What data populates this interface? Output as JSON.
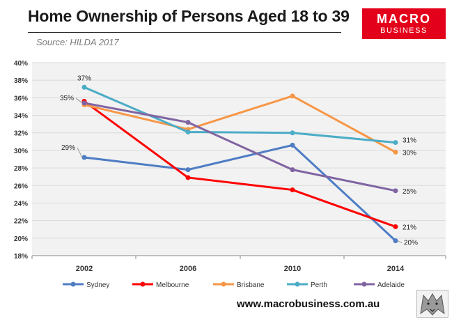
{
  "header": {
    "title": "Home Ownership of Persons Aged 18 to 39",
    "source": "Source: HILDA 2017",
    "logo_line1": "MACRO",
    "logo_line2": "BUSINESS"
  },
  "footer": {
    "url": "www.macrobusiness.com.au"
  },
  "chart_data": {
    "type": "line",
    "title": "Home Ownership of Persons Aged 18 to 39",
    "x": [
      "2002",
      "2006",
      "2010",
      "2014"
    ],
    "xlabel": "",
    "ylabel": "",
    "ylim": [
      18,
      40
    ],
    "yticks": [
      18,
      20,
      22,
      24,
      26,
      28,
      30,
      32,
      34,
      36,
      38,
      40
    ],
    "ytick_labels": [
      "18%",
      "20%",
      "22%",
      "24%",
      "26%",
      "28%",
      "30%",
      "32%",
      "34%",
      "36%",
      "38%",
      "40%"
    ],
    "grid": true,
    "legend": "bottom",
    "series": [
      {
        "name": "Sydney",
        "color": "#4f7dc4",
        "values": [
          29.2,
          27.8,
          30.6,
          19.7
        ]
      },
      {
        "name": "Melbourne",
        "color": "#ff0000",
        "values": [
          35.6,
          26.9,
          25.5,
          21.3
        ]
      },
      {
        "name": "Brisbane",
        "color": "#f79646",
        "values": [
          35.2,
          32.4,
          36.2,
          29.8
        ]
      },
      {
        "name": "Perth",
        "color": "#4bacc6",
        "values": [
          37.2,
          32.1,
          32.0,
          30.9
        ]
      },
      {
        "name": "Adelaide",
        "color": "#8064a2",
        "values": [
          35.4,
          33.2,
          27.8,
          25.4
        ]
      }
    ],
    "annotations": [
      {
        "text": "37%",
        "series": "Perth",
        "index": 0
      },
      {
        "text": "35%",
        "series": "Adelaide",
        "index": 0
      },
      {
        "text": "29%",
        "series": "Sydney",
        "index": 0
      },
      {
        "text": "31%",
        "series": "Perth",
        "index": 3
      },
      {
        "text": "30%",
        "series": "Brisbane",
        "index": 3
      },
      {
        "text": "25%",
        "series": "Adelaide",
        "index": 3
      },
      {
        "text": "21%",
        "series": "Melbourne",
        "index": 3
      },
      {
        "text": "20%",
        "series": "Sydney",
        "index": 3
      }
    ]
  }
}
